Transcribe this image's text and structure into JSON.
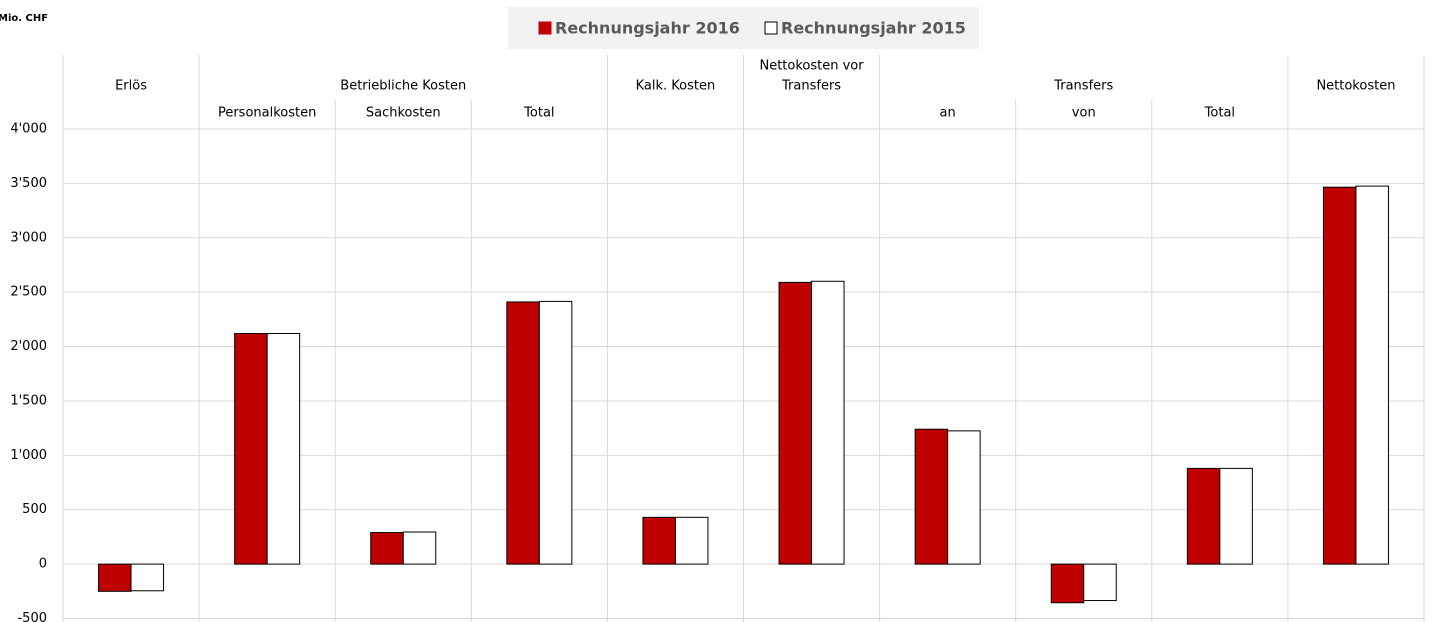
{
  "chart_data": {
    "type": "bar",
    "unit_label": "Mio. CHF",
    "groups": [
      {
        "label": [
          "Erlös"
        ],
        "span": 1
      },
      {
        "label": [
          "Betriebliche Kosten"
        ],
        "span": 3
      },
      {
        "label": [
          "Kalk. Kosten"
        ],
        "span": 1
      },
      {
        "label": [
          "Nettokosten vor",
          "Transfers"
        ],
        "span": 1
      },
      {
        "label": [
          "Transfers"
        ],
        "span": 3
      },
      {
        "label": [
          "Nettokosten"
        ],
        "span": 1
      }
    ],
    "categories": [
      null,
      "Personalkosten",
      "Sachkosten",
      "Total",
      null,
      null,
      "an",
      "von",
      "Total",
      null
    ],
    "series": [
      {
        "name": "Rechnungsjahr 2016",
        "color": "#c00000",
        "values": [
          -250,
          2120,
          290,
          2410,
          430,
          2590,
          1240,
          -355,
          880,
          3465
        ]
      },
      {
        "name": "Rechnungsjahr 2015",
        "color": "#ffffff",
        "values": [
          -245,
          2120,
          295,
          2415,
          430,
          2600,
          1225,
          -335,
          880,
          3475
        ]
      }
    ],
    "ylim": [
      -500,
      4000
    ],
    "yticks": [
      -500,
      0,
      500,
      {
        "value": 1000,
        "label": "1'000"
      },
      {
        "value": 1500,
        "label": "1'500"
      },
      {
        "value": 2000,
        "label": "2'000"
      },
      {
        "value": 2500,
        "label": "2'500"
      },
      {
        "value": 3000,
        "label": "3'000"
      },
      {
        "value": 3500,
        "label": "3'500"
      },
      {
        "value": 4000,
        "label": "4'000"
      }
    ],
    "grid": true,
    "legend": "top"
  }
}
